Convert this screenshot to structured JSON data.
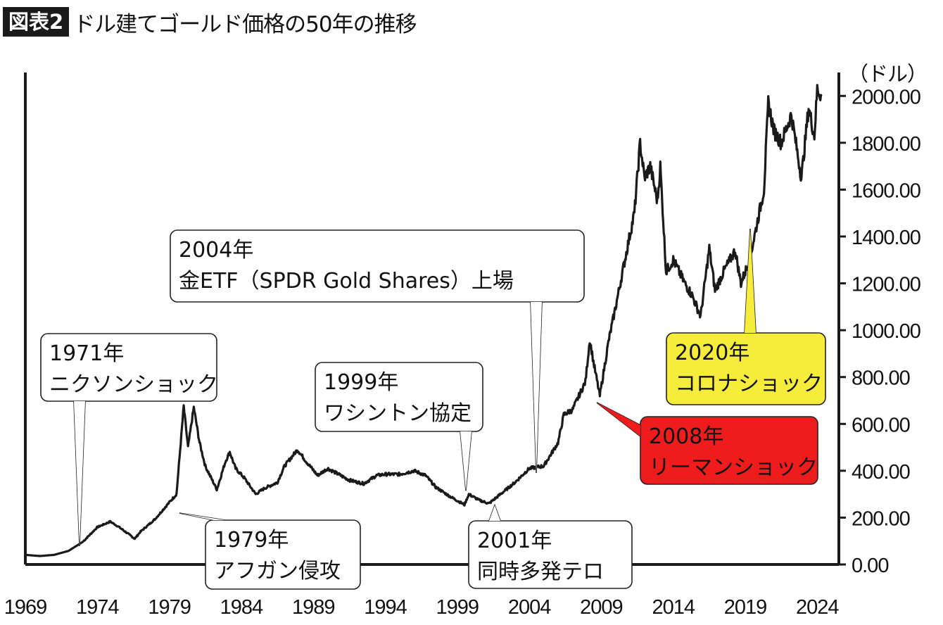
{
  "title": {
    "badge": "図表2",
    "text": "ドル建てゴールド価格の50年の推移"
  },
  "chart_data": {
    "type": "line",
    "ylabel": "（ドル）",
    "ylim": [
      0,
      2100
    ],
    "xlim": [
      1969,
      2025.5
    ],
    "y_ticks": [
      "0.00",
      "200.00",
      "400.00",
      "600.00",
      "800.00",
      "1000.00",
      "1200.00",
      "1400.00",
      "1600.00",
      "1800.00",
      "2000.00"
    ],
    "x_ticks": [
      "1969",
      "1974",
      "1979",
      "1984",
      "1989",
      "1994",
      "1999",
      "2004",
      "2009",
      "2014",
      "2019",
      "2024"
    ],
    "series": [
      {
        "points": [
          [
            1969,
            41
          ],
          [
            1970,
            36
          ],
          [
            1971,
            41
          ],
          [
            1972,
            58
          ],
          [
            1973,
            97
          ],
          [
            1974,
            159
          ],
          [
            1974.9,
            183
          ],
          [
            1975.5,
            160
          ],
          [
            1976.6,
            110
          ],
          [
            1977,
            140
          ],
          [
            1978,
            193
          ],
          [
            1979,
            265
          ],
          [
            1979.5,
            300
          ],
          [
            1980.0,
            675
          ],
          [
            1980.3,
            500
          ],
          [
            1980.7,
            670
          ],
          [
            1981.1,
            520
          ],
          [
            1981.5,
            420
          ],
          [
            1982.3,
            320
          ],
          [
            1982.9,
            440
          ],
          [
            1983.2,
            480
          ],
          [
            1983.6,
            410
          ],
          [
            1984.2,
            370
          ],
          [
            1985.0,
            300
          ],
          [
            1985.6,
            325
          ],
          [
            1986.5,
            350
          ],
          [
            1987.0,
            420
          ],
          [
            1987.9,
            490
          ],
          [
            1988.5,
            440
          ],
          [
            1989.3,
            380
          ],
          [
            1990.0,
            410
          ],
          [
            1990.9,
            380
          ],
          [
            1991.5,
            360
          ],
          [
            1992.5,
            345
          ],
          [
            1993.4,
            380
          ],
          [
            1994.0,
            385
          ],
          [
            1995.0,
            385
          ],
          [
            1996.0,
            400
          ],
          [
            1996.8,
            380
          ],
          [
            1997.5,
            330
          ],
          [
            1998.5,
            290
          ],
          [
            1999.5,
            255
          ],
          [
            1999.8,
            300
          ],
          [
            2000.5,
            275
          ],
          [
            2001.2,
            260
          ],
          [
            2002.0,
            300
          ],
          [
            2003.0,
            350
          ],
          [
            2004.0,
            410
          ],
          [
            2005.0,
            420
          ],
          [
            2006.0,
            520
          ],
          [
            2006.4,
            640
          ],
          [
            2007.0,
            660
          ],
          [
            2007.9,
            780
          ],
          [
            2008.2,
            960
          ],
          [
            2008.5,
            850
          ],
          [
            2008.9,
            720
          ],
          [
            2009.5,
            950
          ],
          [
            2010.0,
            1100
          ],
          [
            2010.9,
            1380
          ],
          [
            2011.3,
            1500
          ],
          [
            2011.7,
            1800
          ],
          [
            2012.0,
            1650
          ],
          [
            2012.4,
            1700
          ],
          [
            2012.9,
            1550
          ],
          [
            2013.1,
            1700
          ],
          [
            2013.5,
            1250
          ],
          [
            2014.0,
            1300
          ],
          [
            2014.8,
            1200
          ],
          [
            2015.3,
            1150
          ],
          [
            2015.9,
            1060
          ],
          [
            2016.5,
            1350
          ],
          [
            2016.9,
            1170
          ],
          [
            2017.5,
            1250
          ],
          [
            2018.3,
            1340
          ],
          [
            2018.7,
            1200
          ],
          [
            2019.3,
            1300
          ],
          [
            2019.9,
            1480
          ],
          [
            2020.3,
            1600
          ],
          [
            2020.6,
            1970
          ],
          [
            2021.0,
            1850
          ],
          [
            2021.5,
            1800
          ],
          [
            2022.2,
            1920
          ],
          [
            2022.9,
            1650
          ],
          [
            2023.4,
            1950
          ],
          [
            2023.8,
            1830
          ],
          [
            2024.0,
            2030
          ],
          [
            2024.3,
            2000
          ]
        ]
      }
    ],
    "annotations": [
      {
        "lines": [
          "1971年",
          "ニクソンショック"
        ],
        "x": 1971.6,
        "y": 40,
        "fill": "#ffffff"
      },
      {
        "lines": [
          "1979年",
          "アフガン侵攻"
        ],
        "x": 1979.9,
        "y": 250,
        "fill": "#ffffff"
      },
      {
        "lines": [
          "1999年",
          "ワシントン協定"
        ],
        "x": 1999.6,
        "y": 270,
        "fill": "#ffffff"
      },
      {
        "lines": [
          "2001年",
          "同時多発テロ"
        ],
        "x": 2001.6,
        "y": 265,
        "fill": "#ffffff"
      },
      {
        "lines": [
          "2004年",
          "金ETF（SPDR Gold Shares）上場"
        ],
        "x": 2004.6,
        "y": 410,
        "fill": "#ffffff"
      },
      {
        "lines": [
          "2008年",
          "リーマンショック"
        ],
        "x": 2008.8,
        "y": 720,
        "fill": "#ee1c1c"
      },
      {
        "lines": [
          "2020年",
          "コロナショック"
        ],
        "x": 2020.2,
        "y": 1500,
        "fill": "#f6ec3c"
      }
    ]
  },
  "colors": {
    "line": "#1a1a1a",
    "axis": "#1a1a1a",
    "red_box": "#ee1c1c",
    "yellow_box": "#f6ec3c"
  }
}
